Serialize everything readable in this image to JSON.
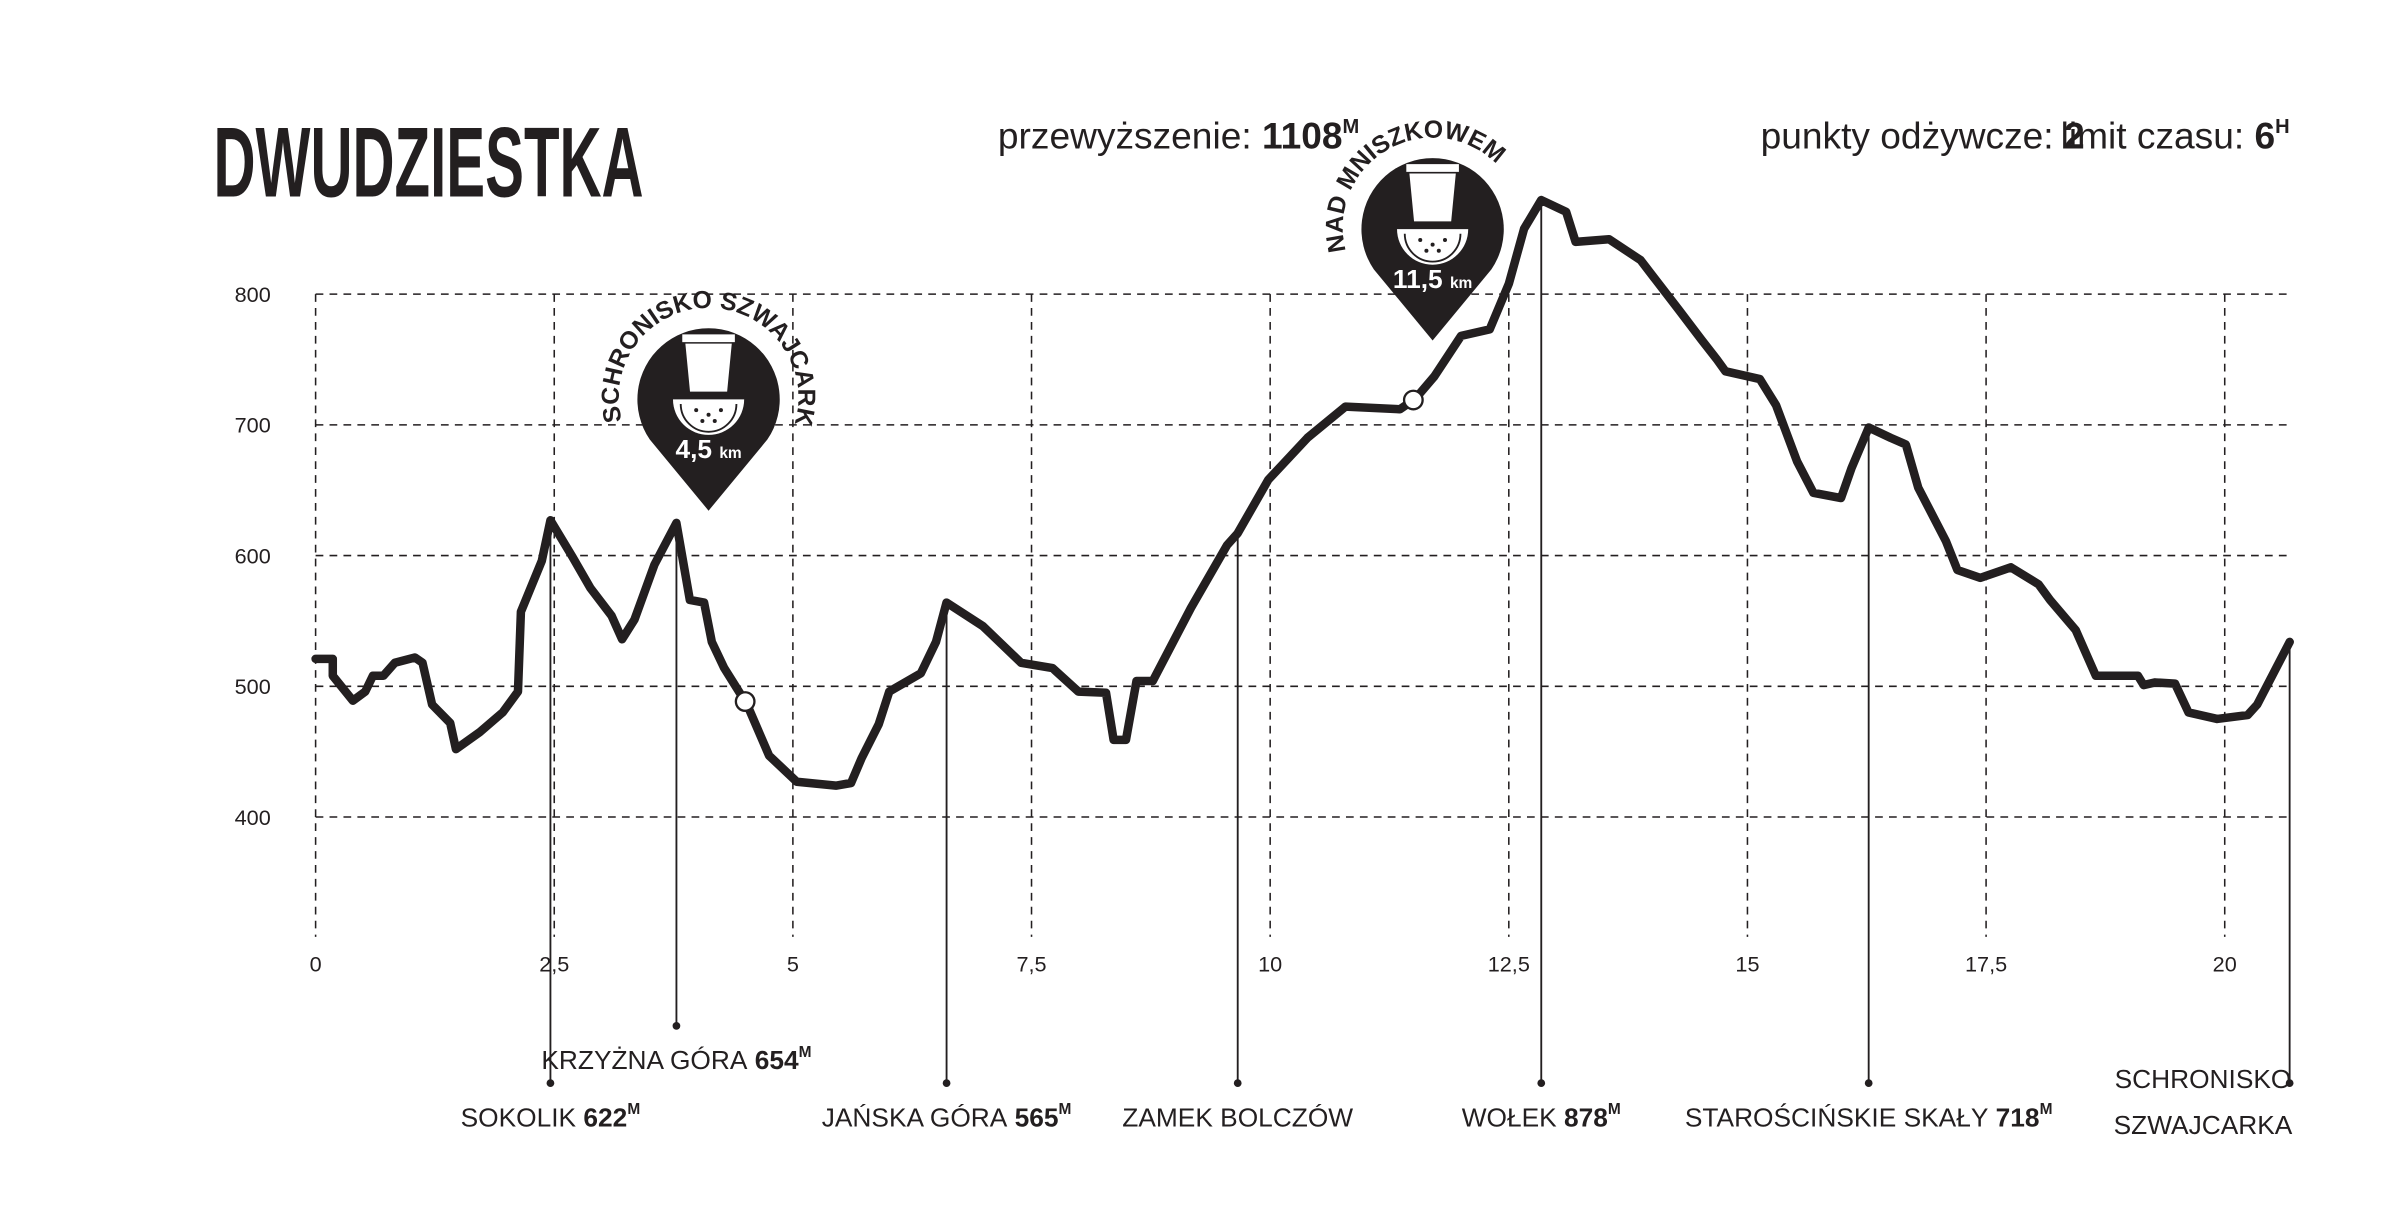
{
  "chart_data": {
    "type": "line",
    "title": "DWUDZIESTKA",
    "stats": [
      {
        "label": "przewyższenie:",
        "value": 1108,
        "unit": "M"
      },
      {
        "label": "punkty odżywcze:",
        "value": 2
      },
      {
        "label": "limit czasu:",
        "value": 6,
        "unit": "H"
      }
    ],
    "x": [
      0,
      0.18,
      0.18,
      0.39,
      0.52,
      0.6,
      0.71,
      0.83,
      1.04,
      1.12,
      1.22,
      1.41,
      1.47,
      1.72,
      1.96,
      2.12,
      2.15,
      2.37,
      2.46,
      2.69,
      2.88,
      3.1,
      3.21,
      3.34,
      3.55,
      3.78,
      3.92,
      4.07,
      4.15,
      4.28,
      4.52,
      4.75,
      5.04,
      5.45,
      5.61,
      5.72,
      5.9,
      6.01,
      6.34,
      6.5,
      6.61,
      6.99,
      7.39,
      7.72,
      7.99,
      8.28,
      8.36,
      8.49,
      8.6,
      8.77,
      9.17,
      9.55,
      9.66,
      9.98,
      10.39,
      10.79,
      11.36,
      11.52,
      11.72,
      12.0,
      12.3,
      12.5,
      12.66,
      12.84,
      13.1,
      13.2,
      13.55,
      13.88,
      14.28,
      14.52,
      14.68,
      14.77,
      15.13,
      15.3,
      15.52,
      15.69,
      15.98,
      16.09,
      16.27,
      16.5,
      16.66,
      16.79,
      17.08,
      17.2,
      17.44,
      17.76,
      18.05,
      18.17,
      18.44,
      18.65,
      19.09,
      19.15,
      19.27,
      19.48,
      19.62,
      19.92,
      20.24,
      20.34,
      20.68
    ],
    "values": [
      521,
      521,
      508,
      489,
      496,
      508,
      508,
      518,
      522,
      518,
      486,
      472,
      452,
      465,
      480,
      496,
      557,
      596,
      627,
      599,
      575,
      554,
      536,
      551,
      593,
      625,
      566,
      564,
      534,
      514,
      486,
      447,
      427,
      424,
      426,
      445,
      471,
      496,
      510,
      534,
      564,
      546,
      518,
      514,
      496,
      495,
      459,
      459,
      504,
      504,
      560,
      608,
      617,
      658,
      690,
      714,
      712,
      720,
      737,
      768,
      773,
      808,
      850,
      872,
      863,
      840,
      842,
      826,
      788,
      765,
      750,
      741,
      735,
      715,
      672,
      648,
      644,
      667,
      698,
      690,
      685,
      652,
      611,
      589,
      583,
      591,
      578,
      566,
      543,
      508,
      508,
      501,
      503,
      502,
      480,
      475,
      478,
      486,
      534
    ],
    "color": "#231f20",
    "xlim": [
      0,
      20.7
    ],
    "xticks": [
      0,
      {
        "value": 2.5,
        "label": "2,5"
      },
      5,
      {
        "value": 7.5,
        "label": "7,5"
      },
      10,
      {
        "value": 12.5,
        "label": "12,5"
      },
      15,
      {
        "value": 17.5,
        "label": "17,5"
      },
      20
    ],
    "ylim": [
      300,
      900
    ],
    "yticks": [
      400,
      500,
      600,
      700,
      800
    ],
    "grid": true,
    "stations": [
      {
        "name": "SCHRONISKO SZWAJCARKA",
        "distance": {
          "value": 4.5,
          "label": "4,5"
        },
        "unit": "km"
      },
      {
        "name": "NAD MNISZKOWEM",
        "distance": {
          "value": 11.5,
          "label": "11,5"
        },
        "unit": "km"
      }
    ],
    "landmarks": [
      {
        "name": "SOKOLIK",
        "elevation": 622,
        "unit": "M",
        "x": 2.46
      },
      {
        "name": "KRZYŻNA GÓRA",
        "elevation": 654,
        "unit": "M",
        "x": 3.78
      },
      {
        "name": "JAŃSKA GÓRA",
        "elevation": 565,
        "unit": "M",
        "x": 6.61
      },
      {
        "name": "ZAMEK BOLCZÓW",
        "x": 9.66
      },
      {
        "name": "WOŁEK",
        "elevation": 878,
        "unit": "M",
        "x": 12.84
      },
      {
        "name": "STAROŚCIŃSKIE SKAŁY",
        "elevation": 718,
        "unit": "M",
        "x": 16.27
      },
      {
        "name": [
          "SCHRONISKO",
          "SZWAJCARKA"
        ],
        "x": 20.68
      }
    ]
  }
}
